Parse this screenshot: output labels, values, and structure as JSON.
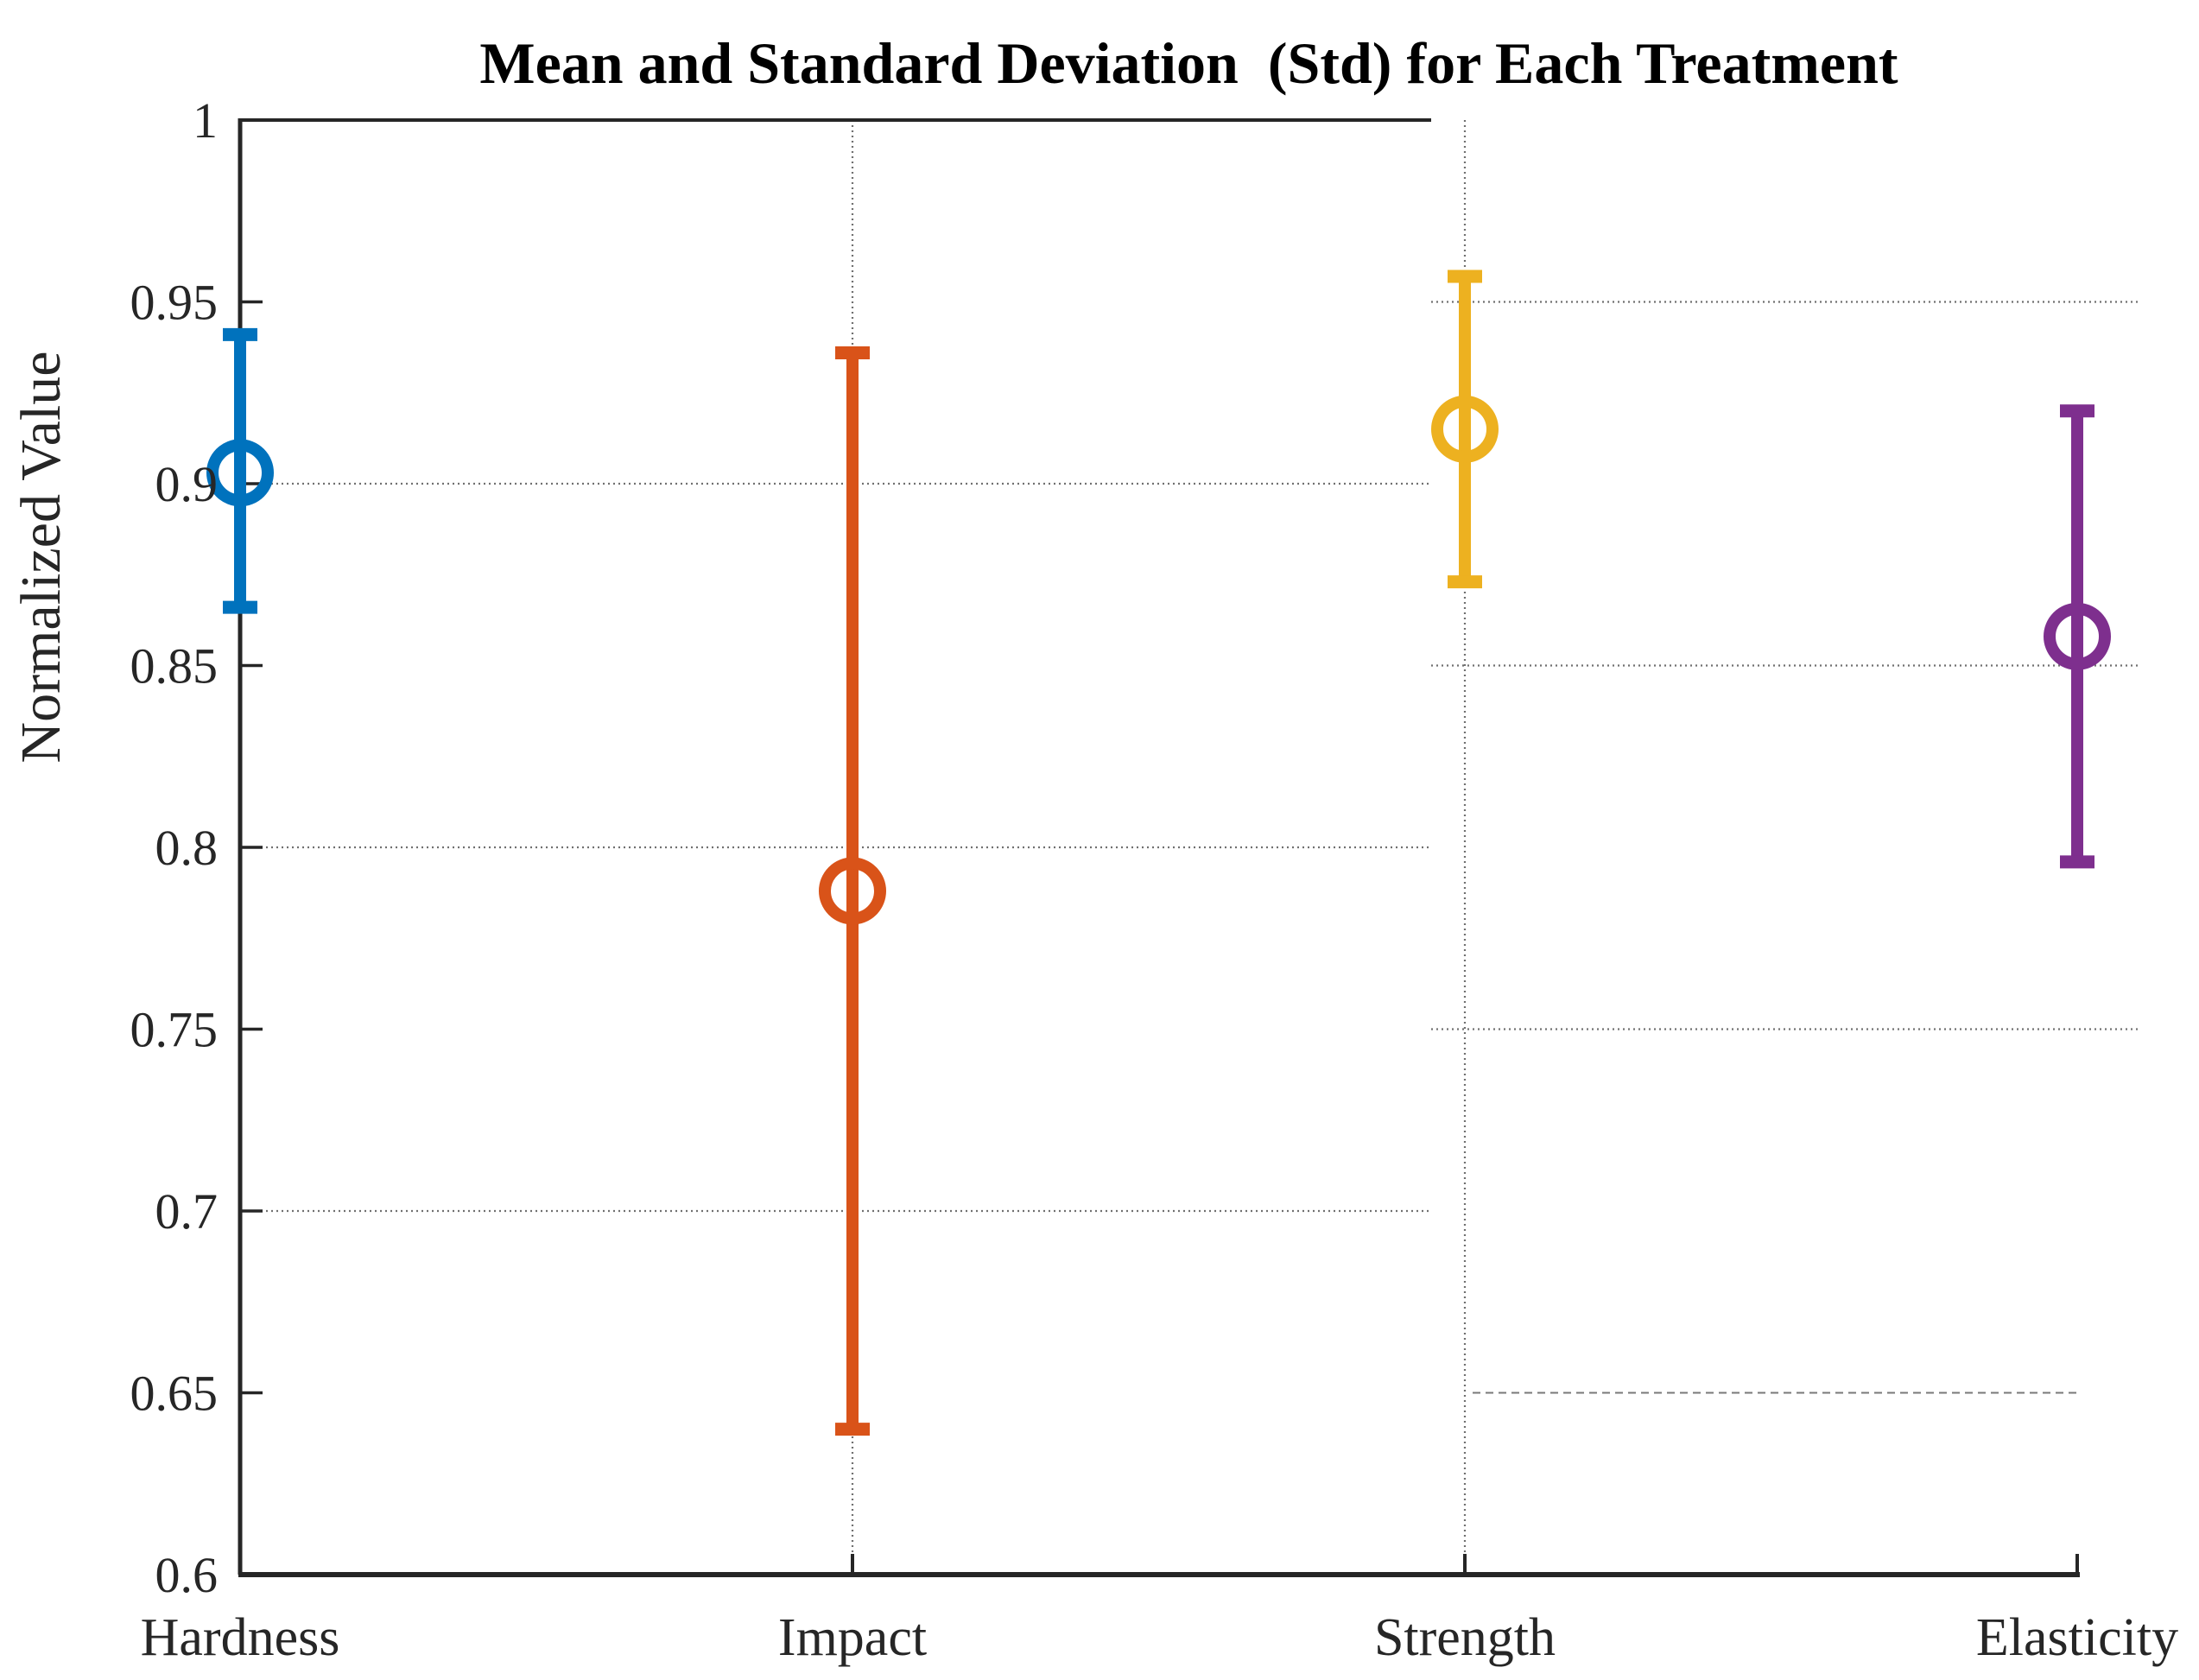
{
  "figure": {
    "title": "Mean and Standard Deviation  (Std) for Each Treatment",
    "ylabel": "Normalized Value"
  },
  "chart_data": {
    "type": "errorbar",
    "title": "Mean and Standard Deviation  (Std) for Each Treatment",
    "xlabel": "",
    "ylabel": "Normalized Value",
    "categories": [
      "Hardness",
      "Impact",
      "Strength",
      "Elasticity"
    ],
    "series": [
      {
        "name": "mean",
        "values": [
          0.903,
          0.788,
          0.915,
          0.858
        ]
      },
      {
        "name": "std",
        "values": [
          0.038,
          0.148,
          0.042,
          0.062
        ]
      },
      {
        "name": "upper",
        "values": [
          0.941,
          0.936,
          0.957,
          0.92
        ]
      },
      {
        "name": "lower",
        "values": [
          0.866,
          0.64,
          0.873,
          0.796
        ]
      }
    ],
    "marker": "hollow-circle",
    "colors": [
      "#0072BD",
      "#D95319",
      "#EDB120",
      "#7E2F8E"
    ],
    "ylim": [
      0.6,
      1.0
    ],
    "yticks": [
      0.6,
      0.65,
      0.7,
      0.75,
      0.8,
      0.85,
      0.9,
      0.95,
      1
    ],
    "ytick_labels": [
      "0.6",
      "0.65",
      "0.7",
      "0.75",
      "0.8",
      "0.85",
      "0.9",
      "0.95",
      "1"
    ],
    "grid": {
      "style": "dotted",
      "left_segment_values": [
        0.7,
        0.8,
        0.9
      ],
      "right_segment_values": [
        0.75,
        0.85,
        0.95
      ],
      "right_dashed_value": 0.65,
      "vertical_at_categories": [
        "Impact",
        "Strength"
      ]
    },
    "legend": "none"
  },
  "style_colors": {
    "axis": "#262626",
    "grid": "#4d4d4d",
    "dashed_grid": "#6b6b6b",
    "tick_text": "#262626",
    "title_text": "#000000"
  }
}
